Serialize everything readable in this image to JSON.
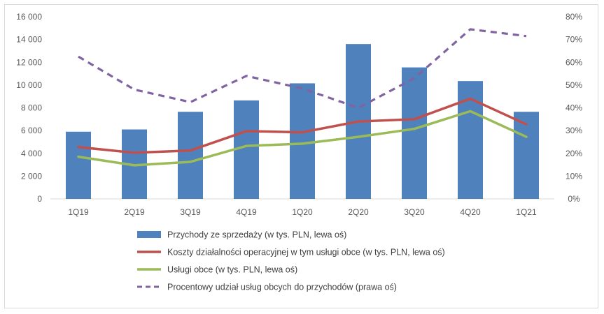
{
  "chart_data": {
    "type": "bar",
    "categories": [
      "1Q19",
      "2Q19",
      "3Q19",
      "4Q19",
      "1Q20",
      "2Q20",
      "3Q20",
      "4Q20",
      "1Q21"
    ],
    "y_left": {
      "ylim": [
        0,
        16000
      ],
      "ticks": [
        "0",
        "2 000",
        "4 000",
        "6 000",
        "8 000",
        "10 000",
        "12 000",
        "14 000",
        "16 000"
      ]
    },
    "y_right": {
      "ylim": [
        0,
        80
      ],
      "ticks": [
        "0%",
        "10%",
        "20%",
        "30%",
        "40%",
        "50%",
        "60%",
        "70%",
        "80%"
      ]
    },
    "grid": false,
    "legend_position": "bottom",
    "series": [
      {
        "name": "Przychody ze sprzedaży (w tys. PLN, lewa oś)",
        "kind": "bar",
        "axis": "left",
        "color": "#4f81bd",
        "values": [
          5900,
          6100,
          7650,
          8650,
          10150,
          13600,
          11550,
          10350,
          7650
        ]
      },
      {
        "name": "Koszty działalności operacyjnej w tym usługi obce (w tys. PLN, lewa oś)",
        "kind": "line",
        "axis": "left",
        "color": "#c0504d",
        "values": [
          4550,
          4050,
          4250,
          5950,
          5850,
          6800,
          7000,
          8800,
          6550
        ]
      },
      {
        "name": "Usługi obce (w tys. PLN, lewa oś)",
        "kind": "line",
        "axis": "left",
        "color": "#9bbb59",
        "values": [
          3700,
          2950,
          3250,
          4650,
          4850,
          5450,
          6150,
          7700,
          5450
        ]
      },
      {
        "name": "Procentowy udział usług obcych do przychodów (prawa oś)",
        "kind": "dashed-line",
        "axis": "right",
        "color": "#8064a2",
        "values": [
          62.5,
          48,
          42.5,
          54,
          48.5,
          40,
          53,
          74.5,
          71.5
        ]
      }
    ]
  }
}
